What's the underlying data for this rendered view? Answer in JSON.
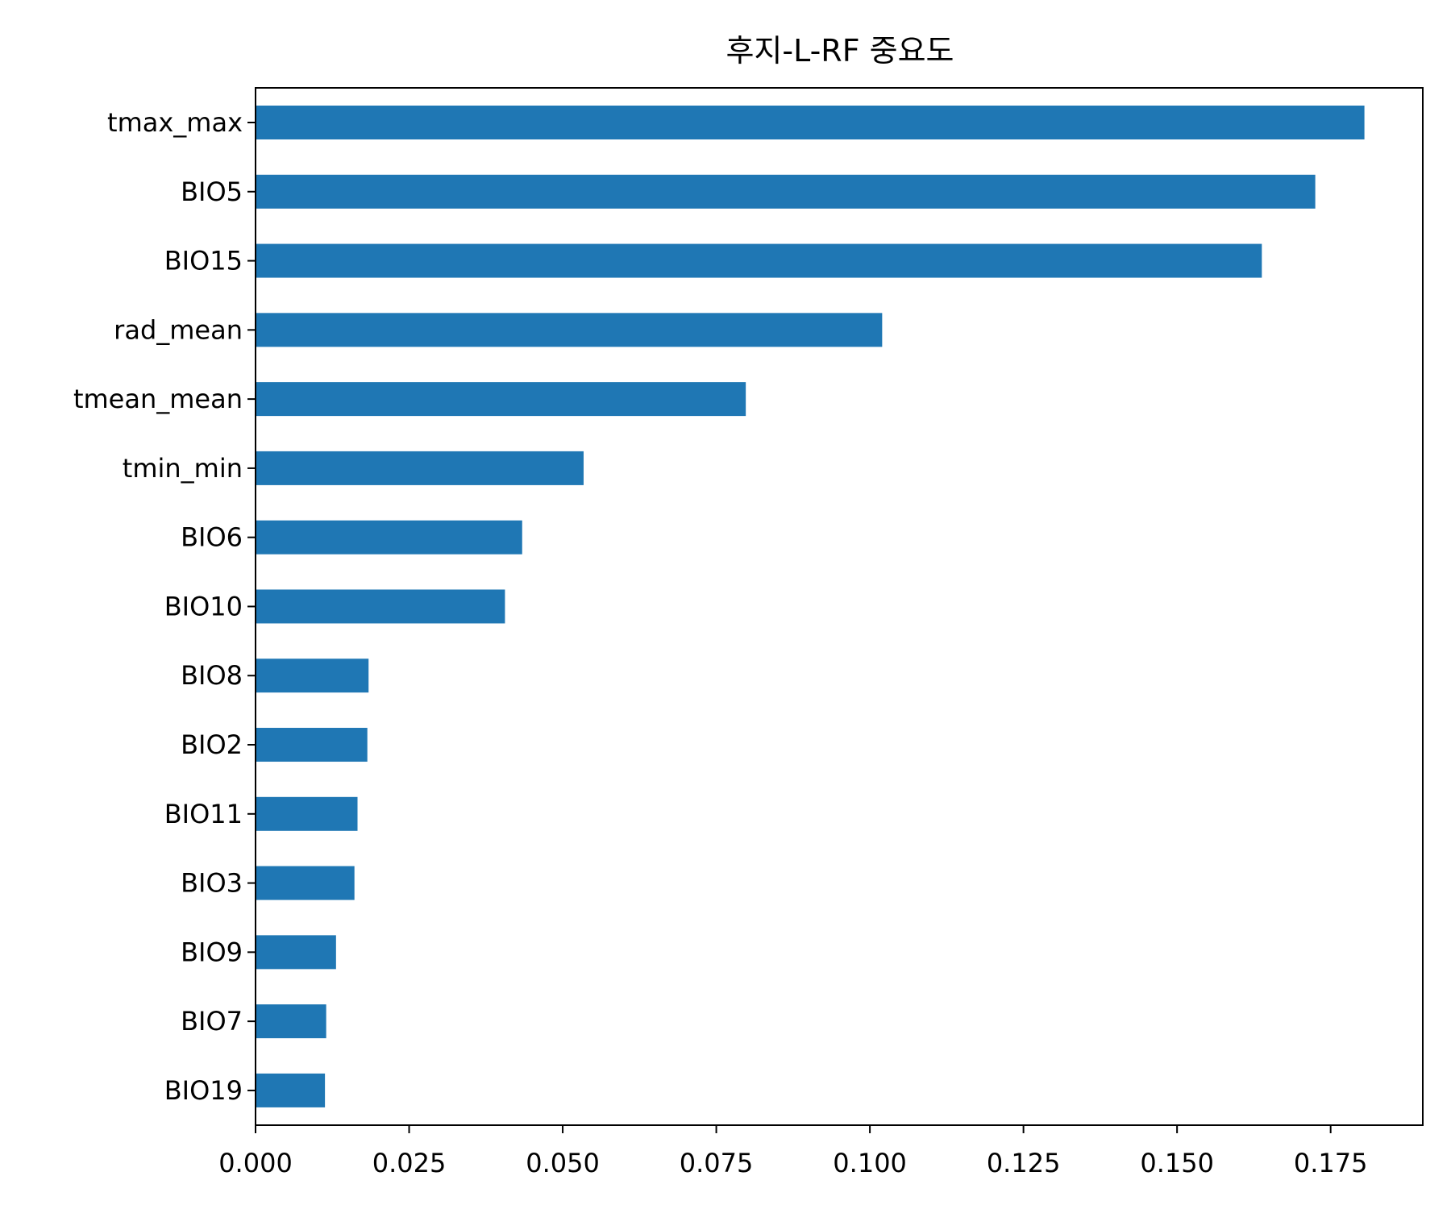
{
  "chart_data": {
    "type": "bar",
    "orientation": "horizontal",
    "title": "후지-L-RF 중요도",
    "xlabel": "",
    "ylabel": "",
    "categories": [
      "tmax_max",
      "BIO5",
      "BIO15",
      "rad_mean",
      "tmean_mean",
      "tmin_min",
      "BIO6",
      "BIO10",
      "BIO8",
      "BIO2",
      "BIO11",
      "BIO3",
      "BIO9",
      "BIO7",
      "BIO19"
    ],
    "values": [
      0.1805,
      0.1725,
      0.1638,
      0.102,
      0.0798,
      0.0534,
      0.0434,
      0.0406,
      0.0184,
      0.0182,
      0.0166,
      0.0161,
      0.0131,
      0.0115,
      0.0113
    ],
    "xlim": [
      0,
      0.19
    ],
    "x_ticks": [
      "0.000",
      "0.025",
      "0.050",
      "0.075",
      "0.100",
      "0.125",
      "0.150",
      "0.175"
    ],
    "x_tick_values": [
      0,
      0.025,
      0.05,
      0.075,
      0.1,
      0.125,
      0.15,
      0.175
    ],
    "bar_color": "#1f77b4",
    "grid": false,
    "legend": "none"
  }
}
